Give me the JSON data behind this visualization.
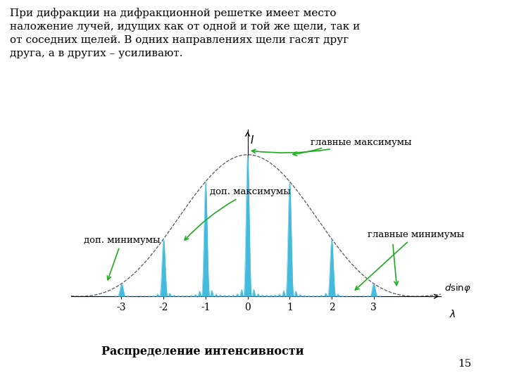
{
  "title_text": "При дифракции на дифракционной решетке имеет место\nналожение лучей, идущих как от одной и той же щели, так и\nот соседних щелей. В одних направлениях щели гасят друг\nдруга, а в других – усиливают.",
  "caption": "Распределение интенсивности",
  "page_number": "15",
  "x_ticks": [
    -3,
    -2,
    -1,
    0,
    1,
    2,
    3
  ],
  "x_range": [
    -4.2,
    4.6
  ],
  "y_range": [
    0,
    1.18
  ],
  "line_color": "#44BBDD",
  "envelope_color": "#555555",
  "arrow_color": "#22AA22",
  "N_slits": 10,
  "slit_ratio": 4.0,
  "label_dop_max": "доп. максимумы",
  "label_dop_min": "доп. минимумы",
  "label_main_max": "главные максимумы",
  "label_main_min": "главные минимумы"
}
